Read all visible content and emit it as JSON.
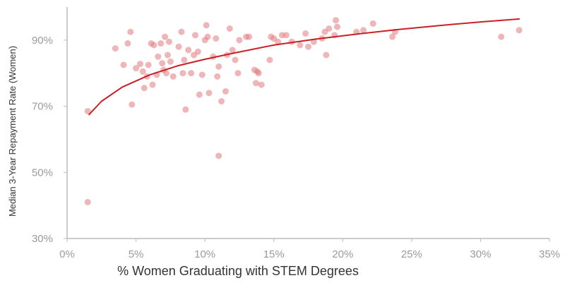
{
  "chart_data": {
    "type": "scatter",
    "xlabel": "% Women Graduating with STEM Degrees",
    "ylabel": "Median 3-Year Repayment Rate (Women)",
    "xlim": [
      0,
      35
    ],
    "ylim": [
      30,
      100
    ],
    "x_ticks": [
      0,
      5,
      10,
      15,
      20,
      25,
      30,
      35
    ],
    "x_tick_labels": [
      "0%",
      "5%",
      "10%",
      "15%",
      "20%",
      "25%",
      "30%",
      "35%"
    ],
    "y_ticks": [
      30,
      50,
      70,
      90
    ],
    "y_tick_labels": [
      "30%",
      "50%",
      "70%",
      "90%"
    ],
    "grid": false,
    "colors": {
      "points": "#e07a80",
      "trend": "#cc1f24",
      "axis": "#bbbbbb"
    },
    "series": [
      {
        "type": "scatter",
        "points": [
          [
            1.5,
            68.5
          ],
          [
            1.5,
            41.0
          ],
          [
            3.5,
            87.5
          ],
          [
            4.1,
            82.5
          ],
          [
            4.4,
            89.0
          ],
          [
            4.6,
            92.5
          ],
          [
            4.7,
            70.5
          ],
          [
            5.0,
            81.5
          ],
          [
            5.3,
            82.8
          ],
          [
            5.5,
            80.5
          ],
          [
            5.6,
            75.5
          ],
          [
            5.8,
            79.0
          ],
          [
            5.9,
            82.5
          ],
          [
            6.1,
            89.0
          ],
          [
            6.2,
            76.5
          ],
          [
            6.3,
            88.5
          ],
          [
            6.5,
            79.5
          ],
          [
            6.6,
            85.0
          ],
          [
            6.8,
            89.0
          ],
          [
            6.9,
            83.0
          ],
          [
            7.0,
            81.0
          ],
          [
            7.1,
            91.0
          ],
          [
            7.2,
            80.0
          ],
          [
            7.3,
            85.5
          ],
          [
            7.4,
            89.5
          ],
          [
            7.5,
            83.5
          ],
          [
            7.7,
            79.0
          ],
          [
            8.1,
            88.0
          ],
          [
            8.3,
            92.5
          ],
          [
            8.4,
            80.0
          ],
          [
            8.5,
            84.0
          ],
          [
            8.6,
            69.0
          ],
          [
            8.8,
            87.0
          ],
          [
            9.0,
            80.0
          ],
          [
            9.2,
            85.5
          ],
          [
            9.3,
            91.5
          ],
          [
            9.5,
            86.5
          ],
          [
            9.6,
            73.5
          ],
          [
            9.8,
            79.5
          ],
          [
            10.0,
            90.0
          ],
          [
            10.1,
            94.5
          ],
          [
            10.2,
            91.0
          ],
          [
            10.3,
            74.0
          ],
          [
            10.6,
            85.0
          ],
          [
            10.8,
            90.5
          ],
          [
            10.9,
            79.0
          ],
          [
            11.0,
            82.0
          ],
          [
            11.0,
            55.0
          ],
          [
            11.2,
            71.5
          ],
          [
            11.5,
            74.5
          ],
          [
            11.6,
            85.5
          ],
          [
            11.8,
            93.5
          ],
          [
            12.0,
            87.0
          ],
          [
            12.2,
            84.0
          ],
          [
            12.4,
            80.0
          ],
          [
            12.5,
            90.0
          ],
          [
            13.0,
            91.0
          ],
          [
            13.2,
            91.0
          ],
          [
            13.6,
            81.0
          ],
          [
            13.7,
            77.0
          ],
          [
            13.8,
            80.5
          ],
          [
            13.9,
            80.0
          ],
          [
            14.1,
            76.5
          ],
          [
            14.7,
            84.0
          ],
          [
            14.8,
            91.0
          ],
          [
            15.0,
            90.5
          ],
          [
            15.3,
            89.5
          ],
          [
            15.6,
            91.5
          ],
          [
            15.9,
            91.5
          ],
          [
            16.3,
            89.5
          ],
          [
            16.9,
            88.5
          ],
          [
            17.3,
            92.0
          ],
          [
            17.5,
            88.0
          ],
          [
            17.9,
            89.5
          ],
          [
            18.5,
            90.5
          ],
          [
            18.7,
            92.5
          ],
          [
            18.8,
            85.5
          ],
          [
            19.0,
            93.5
          ],
          [
            19.4,
            91.5
          ],
          [
            19.5,
            96.0
          ],
          [
            19.6,
            94.0
          ],
          [
            21.0,
            92.5
          ],
          [
            21.5,
            93.0
          ],
          [
            22.2,
            95.0
          ],
          [
            23.6,
            91.0
          ],
          [
            23.8,
            92.5
          ],
          [
            31.5,
            91.0
          ],
          [
            32.8,
            93.0
          ]
        ]
      },
      {
        "type": "line",
        "trend": "logarithmic",
        "points": [
          [
            1.6,
            67.5
          ],
          [
            2.5,
            71.5
          ],
          [
            4.0,
            75.8
          ],
          [
            6.0,
            79.5
          ],
          [
            8.0,
            82.2
          ],
          [
            10.0,
            84.2
          ],
          [
            12.0,
            86.0
          ],
          [
            15.0,
            88.5
          ],
          [
            18.0,
            90.3
          ],
          [
            21.0,
            91.8
          ],
          [
            24.0,
            93.2
          ],
          [
            27.0,
            94.4
          ],
          [
            30.0,
            95.5
          ],
          [
            32.8,
            96.4
          ]
        ]
      }
    ]
  }
}
